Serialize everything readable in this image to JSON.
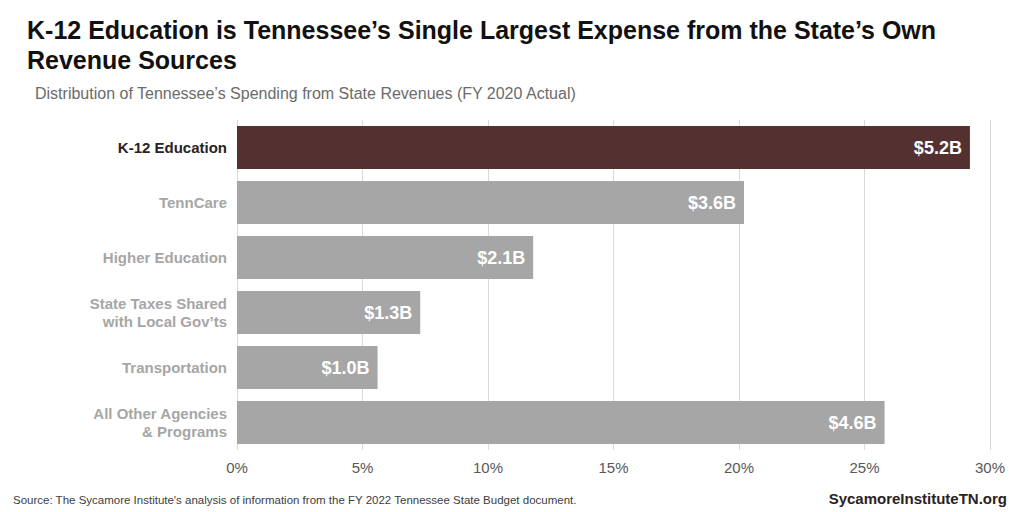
{
  "chart_data": {
    "type": "bar",
    "orientation": "horizontal",
    "title": "K-12 Education is Tennessee’s Single Largest Expense from the State’s Own Revenue Sources",
    "subtitle": "Distribution of Tennessee’s Spending from State Revenues (FY 2020 Actual)",
    "source": "Source: The Sycamore Institute's analysis of information from the FY 2022 Tennessee State Budget document.",
    "credit": "SycamoreInstituteTN.org",
    "categories": [
      "K-12 Education",
      "TennCare",
      "Higher Education",
      "State Taxes Shared\nwith Local Gov’ts",
      "Transportation",
      "All Other Agencies\n& Programs"
    ],
    "values": [
      29.2,
      20.2,
      11.8,
      7.3,
      5.6,
      25.8
    ],
    "bar_labels": [
      "$5.2B",
      "$3.6B",
      "$2.1B",
      "$1.3B",
      "$1.0B",
      "$4.6B"
    ],
    "colors": [
      "#543131",
      "#a6a6a6",
      "#a6a6a6",
      "#a6a6a6",
      "#a6a6a6",
      "#a6a6a6"
    ],
    "xlim": [
      0,
      30
    ],
    "xticks": [
      {
        "value": 0,
        "label": "0%"
      },
      {
        "value": 5,
        "label": "5%"
      },
      {
        "value": 10,
        "label": "10%"
      },
      {
        "value": 15,
        "label": "15%"
      },
      {
        "value": 20,
        "label": "20%"
      },
      {
        "value": 25,
        "label": "25%"
      },
      {
        "value": 30,
        "label": "30%"
      }
    ],
    "grid": true
  }
}
